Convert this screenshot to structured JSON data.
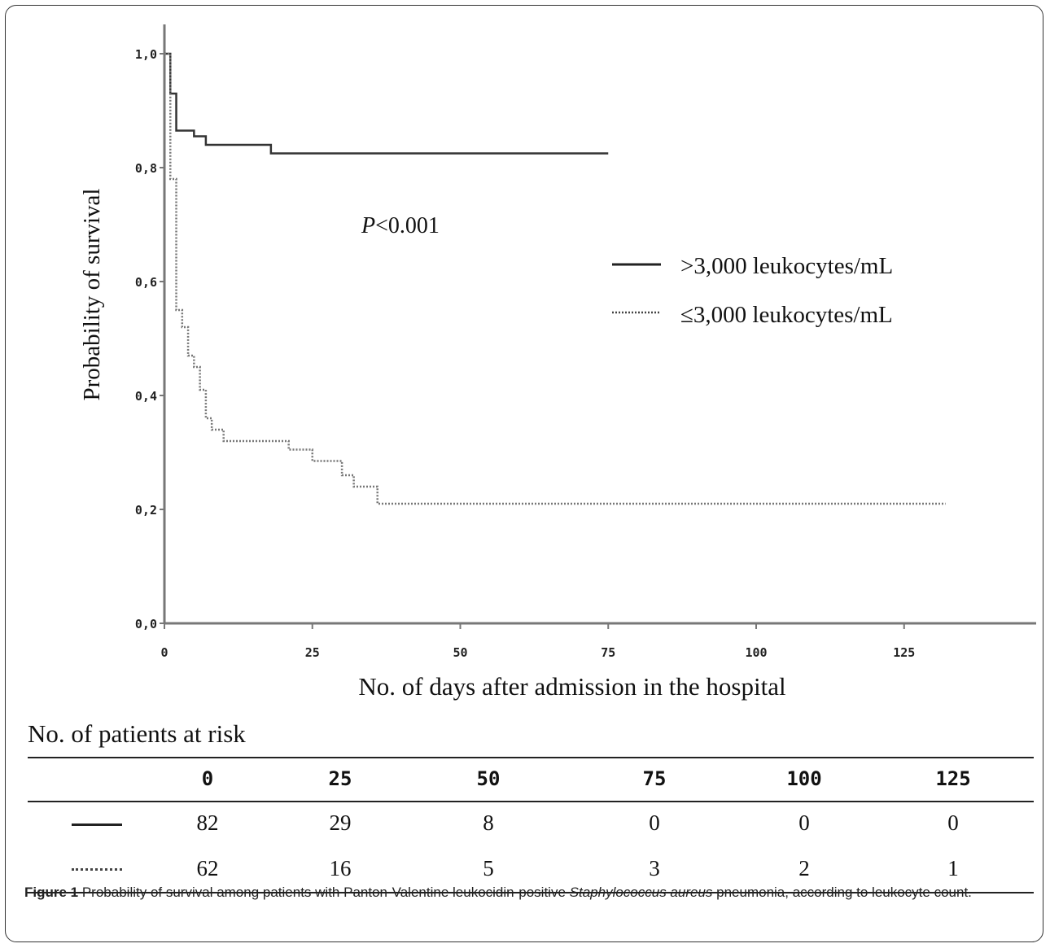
{
  "chart_data": {
    "type": "line",
    "ylabel": "Probability of survival",
    "xlabel": "No. of days after admission in the hospital",
    "xlim": [
      0,
      148
    ],
    "ylim": [
      0,
      1.05
    ],
    "x_ticks": [
      "0",
      "25",
      "50",
      "75",
      "100",
      "125"
    ],
    "x_tick_values": [
      0,
      25,
      50,
      75,
      100,
      125
    ],
    "y_ticks": [
      "0,0",
      "0,2",
      "0,4",
      "0,6",
      "0,8",
      "1,0"
    ],
    "y_tick_values": [
      0,
      0.2,
      0.4,
      0.6,
      0.8,
      1.0
    ],
    "annotation_prefix": "P",
    "annotation_rest": "<0.001",
    "legend_position": "right",
    "grid": false,
    "series": [
      {
        "name": ">3,000 leukocytes/mL",
        "style": "solid",
        "color": "#333333",
        "steps": [
          [
            0,
            1.0
          ],
          [
            1,
            0.93
          ],
          [
            2,
            0.865
          ],
          [
            5,
            0.855
          ],
          [
            7,
            0.84
          ],
          [
            18,
            0.825
          ],
          [
            75,
            0.825
          ]
        ]
      },
      {
        "name": "≤3,000 leukocytes/mL",
        "style": "dotted",
        "color": "#777777",
        "steps": [
          [
            0,
            1.0
          ],
          [
            1,
            0.78
          ],
          [
            2,
            0.55
          ],
          [
            3,
            0.52
          ],
          [
            4,
            0.47
          ],
          [
            5,
            0.45
          ],
          [
            6,
            0.41
          ],
          [
            7,
            0.36
          ],
          [
            8,
            0.34
          ],
          [
            10,
            0.32
          ],
          [
            21,
            0.305
          ],
          [
            25,
            0.285
          ],
          [
            30,
            0.26
          ],
          [
            32,
            0.24
          ],
          [
            36,
            0.21
          ],
          [
            132,
            0.21
          ]
        ]
      }
    ]
  },
  "risk_table": {
    "title": "No. of patients at risk",
    "columns": [
      "0",
      "25",
      "50",
      "75",
      "100",
      "125"
    ],
    "rows": [
      {
        "style": "solid",
        "values": [
          "82",
          "29",
          "8",
          "0",
          "0",
          "0"
        ]
      },
      {
        "style": "dotted",
        "values": [
          "62",
          "16",
          "5",
          "3",
          "2",
          "1"
        ]
      }
    ]
  },
  "caption": {
    "label": "Figure 1",
    "text_before": " Probability of survival among patients with Panton-Valentine leukocidin-positive ",
    "italic": "Staphylococcus aureus",
    "text_after": " pneumonia, according to leukocyte count."
  }
}
